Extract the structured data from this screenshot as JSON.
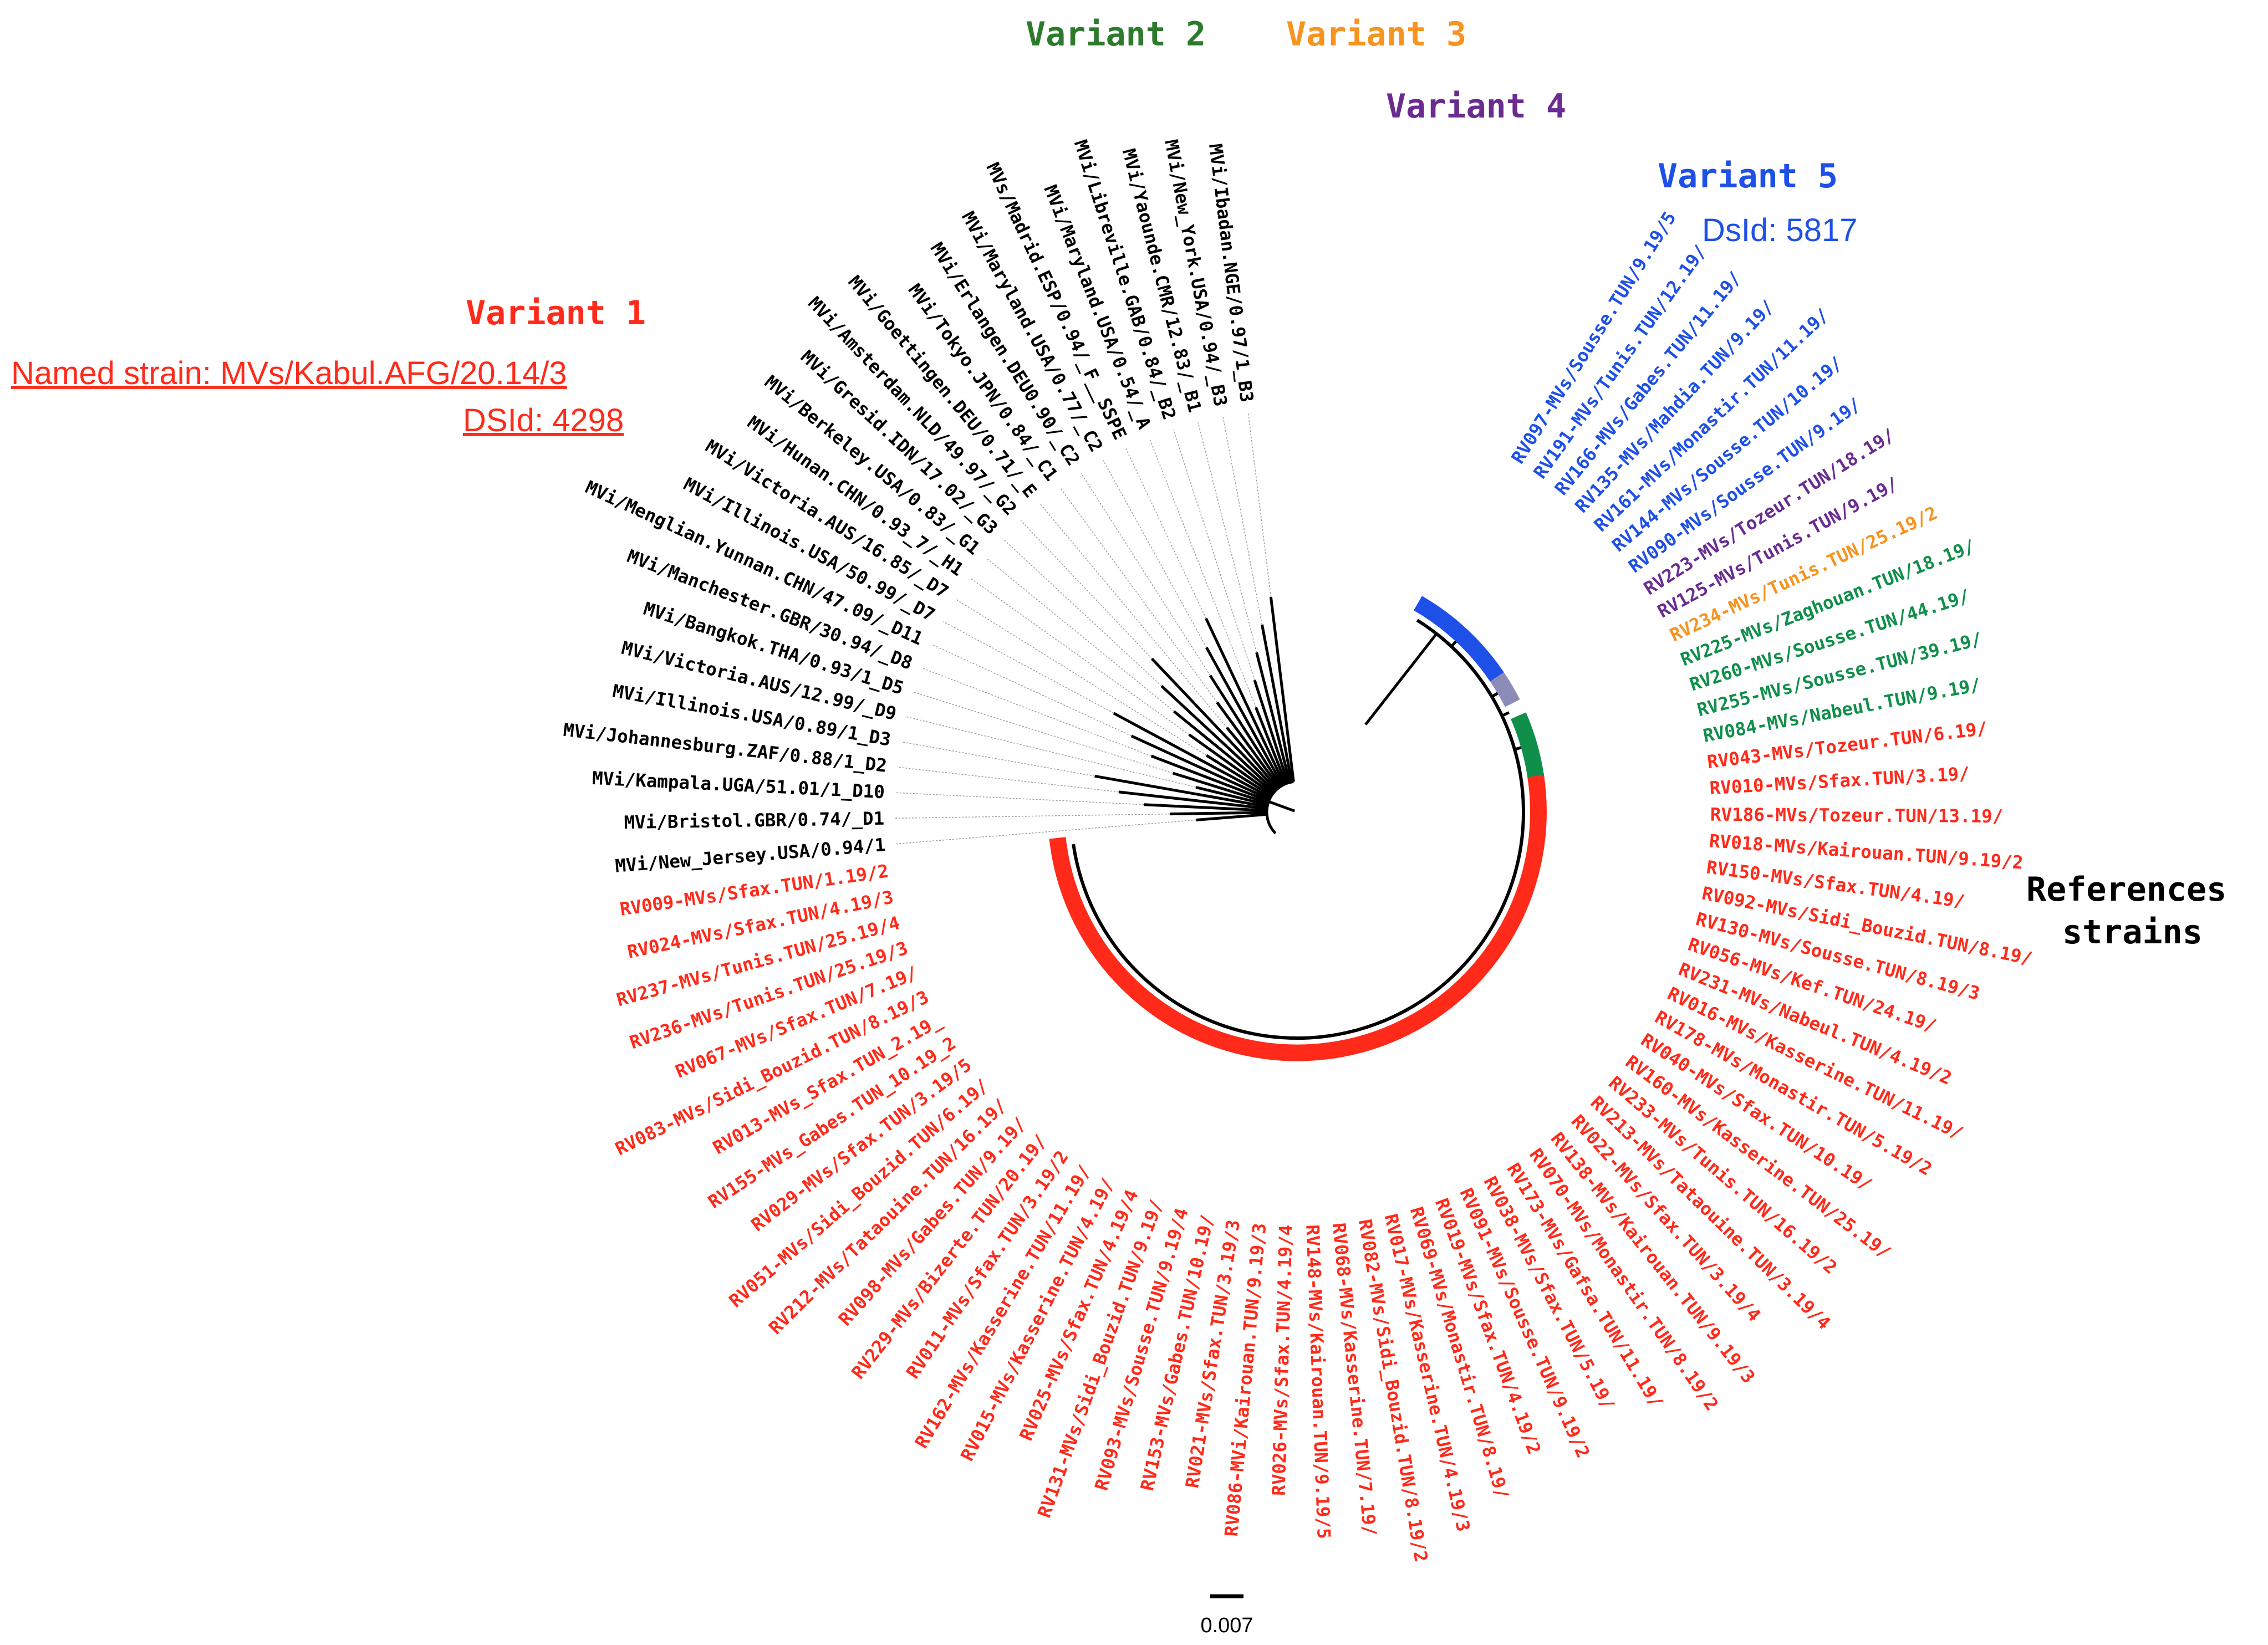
{
  "colors": {
    "variant1": "#ff2a1a",
    "variant2": "#0f8f4a",
    "variant3": "#f7931e",
    "variant4": "#6a2c91",
    "variant5": "#1e50e8",
    "reference": "#000000",
    "variant2_title": "#2d7a2d",
    "variant4_band": "#8c8cb8"
  },
  "variant_titles": {
    "variant1": "Variant 1",
    "variant2": "Variant 2",
    "variant3": "Variant 3",
    "variant4": "Variant 4",
    "variant5": "Variant 5"
  },
  "variant1_info": {
    "named_strain": "Named strain: MVs/Kabul.AFG/20.14/3",
    "dsid": "DSId: 4298"
  },
  "variant5_info": {
    "dsid": "DsId: 5817"
  },
  "references_label": [
    "References",
    "strains"
  ],
  "scale_bar": {
    "value": 0.007,
    "label": "0.007"
  },
  "tips": [
    {
      "label": "RV097-MVs/Sousse.TUN/9.19/5",
      "group": "variant5"
    },
    {
      "label": "RV191-MVs/Tunis.TUN/12.19/",
      "group": "variant5"
    },
    {
      "label": "RV166-MVs/Gabes.TUN/11.19/",
      "group": "variant5"
    },
    {
      "label": "RV135-MVs/Mahdia.TUN/9.19/",
      "group": "variant5"
    },
    {
      "label": "RV161-MVs/Monastir.TUN/11.19/",
      "group": "variant5"
    },
    {
      "label": "RV144-MVs/Sousse.TUN/10.19/",
      "group": "variant5"
    },
    {
      "label": "RV090-MVs/Sousse.TUN/9.19/",
      "group": "variant5"
    },
    {
      "label": "RV223-MVs/Tozeur.TUN/18.19/",
      "group": "variant4"
    },
    {
      "label": "RV125-MVs/Tunis.TUN/9.19/",
      "group": "variant4"
    },
    {
      "label": "RV234-MVs/Tunis.TUN/25.19/2",
      "group": "variant3"
    },
    {
      "label": "RV225-MVs/Zaghouan.TUN/18.19/",
      "group": "variant2"
    },
    {
      "label": "RV260-MVs/Sousse.TUN/44.19/",
      "group": "variant2"
    },
    {
      "label": "RV255-MVs/Sousse.TUN/39.19/",
      "group": "variant2"
    },
    {
      "label": "RV084-MVs/Nabeul.TUN/9.19/",
      "group": "variant2"
    },
    {
      "label": "RV043-MVs/Tozeur.TUN/6.19/",
      "group": "variant1"
    },
    {
      "label": "RV010-MVs/Sfax.TUN/3.19/",
      "group": "variant1"
    },
    {
      "label": "RV186-MVs/Tozeur.TUN/13.19/",
      "group": "variant1"
    },
    {
      "label": "RV018-MVs/Kairouan.TUN/9.19/2",
      "group": "variant1"
    },
    {
      "label": "RV150-MVs/Sfax.TUN/4.19/",
      "group": "variant1"
    },
    {
      "label": "RV092-MVs/Sidi_Bouzid.TUN/8.19/",
      "group": "variant1"
    },
    {
      "label": "RV130-MVs/Sousse.TUN/8.19/3",
      "group": "variant1"
    },
    {
      "label": "RV056-MVs/Kef.TUN/24.19/",
      "group": "variant1"
    },
    {
      "label": "RV231-MVs/Nabeul.TUN/4.19/2",
      "group": "variant1"
    },
    {
      "label": "RV016-MVs/Kasserine.TUN/11.19/",
      "group": "variant1"
    },
    {
      "label": "RV178-MVs/Monastir.TUN/5.19/2",
      "group": "variant1"
    },
    {
      "label": "RV040-MVs/Sfax.TUN/10.19/",
      "group": "variant1"
    },
    {
      "label": "RV160-MVs/Kasserine.TUN/25.19/",
      "group": "variant1"
    },
    {
      "label": "RV233-MVs/Tunis.TUN/16.19/2",
      "group": "variant1"
    },
    {
      "label": "RV213-MVs/Tataouine.TUN/3.19/4",
      "group": "variant1"
    },
    {
      "label": "RV022-MVs/Sfax.TUN/3.19/4",
      "group": "variant1"
    },
    {
      "label": "RV138-MVs/Kairouan.TUN/9.19/3",
      "group": "variant1"
    },
    {
      "label": "RV070-MVs/Monastir.TUN/8.19/2",
      "group": "variant1"
    },
    {
      "label": "RV173-MVs/Gafsa.TUN/11.19/",
      "group": "variant1"
    },
    {
      "label": "RV038-MVs/Sfax.TUN/5.19/",
      "group": "variant1"
    },
    {
      "label": "RV091-MVs/Sousse.TUN/9.19/2",
      "group": "variant1"
    },
    {
      "label": "RV019-MVs/Sfax.TUN/4.19/2",
      "group": "variant1"
    },
    {
      "label": "RV069-MVs/Monastir.TUN/8.19/",
      "group": "variant1"
    },
    {
      "label": "RV017-MVs/Kasserine.TUN/4.19/3",
      "group": "variant1"
    },
    {
      "label": "RV082-MVs/Sidi_Bouzid.TUN/8.19/2",
      "group": "variant1"
    },
    {
      "label": "RV068-MVs/Kasserine.TUN/7.19/",
      "group": "variant1"
    },
    {
      "label": "RV148-MVs/Kairouan.TUN/9.19/5",
      "group": "variant1"
    },
    {
      "label": "RV026-MVs/Sfax.TUN/4.19/4",
      "group": "variant1"
    },
    {
      "label": "RV086-MVi/Kairouan.TUN/9.19/3",
      "group": "variant1"
    },
    {
      "label": "RV021-MVs/Sfax.TUN/3.19/3",
      "group": "variant1"
    },
    {
      "label": "RV153-MVs/Gabes.TUN/10.19/",
      "group": "variant1"
    },
    {
      "label": "RV093-MVs/Sousse.TUN/9.19/4",
      "group": "variant1"
    },
    {
      "label": "RV131-MVs/Sidi_Bouzid.TUN/9.19/",
      "group": "variant1"
    },
    {
      "label": "RV025-MVs/Sfax.TUN/4.19/4",
      "group": "variant1"
    },
    {
      "label": "RV015-MVs/Kasserine.TUN/4.19/",
      "group": "variant1"
    },
    {
      "label": "RV162-MVs/Kasserine.TUN/11.19/",
      "group": "variant1"
    },
    {
      "label": "RV011-MVs/Sfax.TUN/3.19/2",
      "group": "variant1"
    },
    {
      "label": "RV229-MVs/Bizerte.TUN/20.19/",
      "group": "variant1"
    },
    {
      "label": "RV098-MVs/Gabes.TUN/9.19/",
      "group": "variant1"
    },
    {
      "label": "RV212-MVs/Tataouine.TUN/16.19/",
      "group": "variant1"
    },
    {
      "label": "RV051-MVs/Sidi_Bouzid.TUN/6.19/",
      "group": "variant1"
    },
    {
      "label": "RV029-MVs/Sfax.TUN/3.19/5",
      "group": "variant1"
    },
    {
      "label": "RV155-MVs_Gabes.TUN_10.19_2",
      "group": "variant1"
    },
    {
      "label": "RV013-MVs_Sfax.TUN_2.19_",
      "group": "variant1"
    },
    {
      "label": "RV083-MVs/Sidi_Bouzid.TUN/8.19/3",
      "group": "variant1"
    },
    {
      "label": "RV067-MVs/Sfax.TUN/7.19/",
      "group": "variant1"
    },
    {
      "label": "RV236-MVs/Tunis.TUN/25.19/3",
      "group": "variant1"
    },
    {
      "label": "RV237-MVs/Tunis.TUN/25.19/4",
      "group": "variant1"
    },
    {
      "label": "RV024-MVs/Sfax.TUN/4.19/3",
      "group": "variant1"
    },
    {
      "label": "RV009-MVs/Sfax.TUN/1.19/2",
      "group": "variant1"
    },
    {
      "label": "MVi/New_Jersey.USA/0.94/1",
      "group": "reference"
    },
    {
      "label": "MVi/Bristol.GBR/0.74/_D1",
      "group": "reference"
    },
    {
      "label": "MVi/Kampala.UGA/51.01/1_D10",
      "group": "reference"
    },
    {
      "label": "MVi/Johannesburg.ZAF/0.88/1_D2",
      "group": "reference"
    },
    {
      "label": "MVi/Illinois.USA/0.89/1_D3",
      "group": "reference"
    },
    {
      "label": "MVi/Victoria.AUS/12.99/_D9",
      "group": "reference"
    },
    {
      "label": "MVi/Bangkok.THA/0.93/1_D5",
      "group": "reference"
    },
    {
      "label": "MVi/Manchester.GBR/30.94/_D8",
      "group": "reference"
    },
    {
      "label": "MVi/Menglian.Yunnan.CHN/47.09/_D11",
      "group": "reference"
    },
    {
      "label": "MVi/Illinois.USA/50.99/_D7",
      "group": "reference"
    },
    {
      "label": "MVi/Victoria.AUS/16.85/_D7",
      "group": "reference"
    },
    {
      "label": "MVi/Hunan.CHN/0.93_7/_H1",
      "group": "reference"
    },
    {
      "label": "MVi/Berkeley.USA/0.83/_G1",
      "group": "reference"
    },
    {
      "label": "MVi/Gresid.IDN/17.02/_G3",
      "group": "reference"
    },
    {
      "label": "MVi/Amsterdam.NLD/49.97/_G2",
      "group": "reference"
    },
    {
      "label": "MVi/Goettingen.DEU/0.71/_E",
      "group": "reference"
    },
    {
      "label": "MVi/Tokyo.JPN/0.84/_C1",
      "group": "reference"
    },
    {
      "label": "MVi/Erlangen.DEU0.90/_C2",
      "group": "reference"
    },
    {
      "label": "MVi/Maryland.USA/0.77/_C2",
      "group": "reference"
    },
    {
      "label": "MVs/Madrid.ESP/0.94/_F__SSPE",
      "group": "reference"
    },
    {
      "label": "MVi/Maryland.USA/0.54/_A",
      "group": "reference"
    },
    {
      "label": "MVi/Libreville.GAB/0.84/_B2",
      "group": "reference"
    },
    {
      "label": "MVi/Yaounde.CMR/12.83/_B1",
      "group": "reference"
    },
    {
      "label": "MVi/New_York.USA/0.94/_B3",
      "group": "reference"
    },
    {
      "label": "MVi/Ibadan.NGE/0.97/1_B3",
      "group": "reference"
    }
  ]
}
